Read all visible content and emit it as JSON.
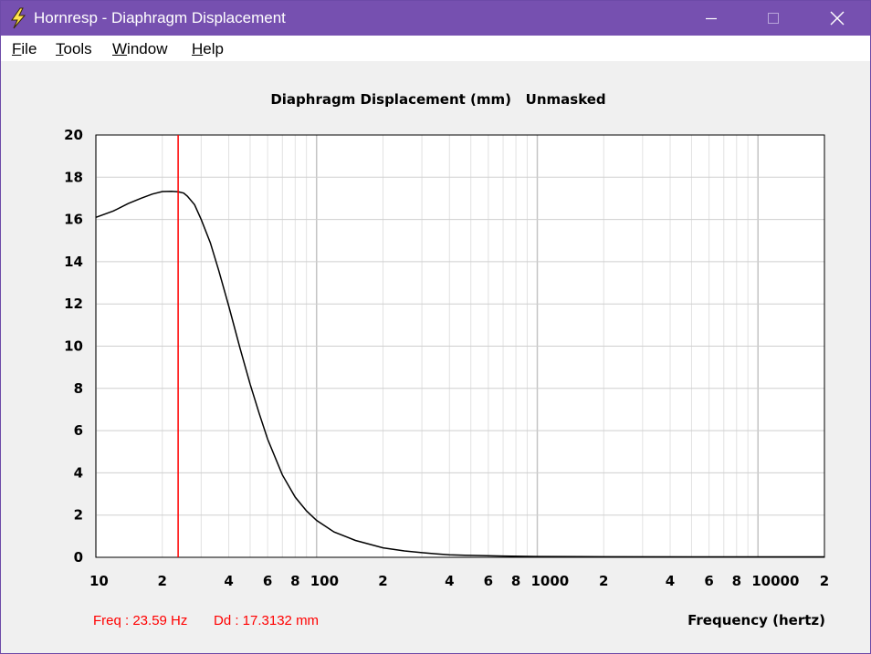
{
  "window": {
    "title": "Hornresp - Diaphragm Displacement",
    "title_color": "#7650b0",
    "icon": "lightning-bolt-icon"
  },
  "menu": {
    "items": [
      {
        "label": "File",
        "accel": "F",
        "rest": "ile"
      },
      {
        "label": "Tools",
        "accel": "T",
        "rest": "ools"
      },
      {
        "label": "Window",
        "accel": "W",
        "rest": "indow"
      },
      {
        "label": "Help",
        "accel": "H",
        "rest": "elp"
      }
    ]
  },
  "chart_data": {
    "type": "line",
    "title": "Diaphragm Displacement (mm)   Unmasked",
    "xlabel": "Frequency (hertz)",
    "ylabel": "",
    "x_scale": "log",
    "xlim": [
      10,
      20000
    ],
    "ylim": [
      0,
      20
    ],
    "grid": true,
    "x_tick_labels": [
      {
        "value": 10,
        "label": "10"
      },
      {
        "value": 20,
        "label": "2"
      },
      {
        "value": 40,
        "label": "4"
      },
      {
        "value": 60,
        "label": "6"
      },
      {
        "value": 80,
        "label": "8"
      },
      {
        "value": 100,
        "label": "100"
      },
      {
        "value": 200,
        "label": "2"
      },
      {
        "value": 400,
        "label": "4"
      },
      {
        "value": 600,
        "label": "6"
      },
      {
        "value": 800,
        "label": "8"
      },
      {
        "value": 1000,
        "label": "1000"
      },
      {
        "value": 2000,
        "label": "2"
      },
      {
        "value": 4000,
        "label": "4"
      },
      {
        "value": 6000,
        "label": "6"
      },
      {
        "value": 8000,
        "label": "8"
      },
      {
        "value": 10000,
        "label": "10000"
      },
      {
        "value": 20000,
        "label": "2"
      }
    ],
    "y_ticks": [
      0,
      2,
      4,
      6,
      8,
      10,
      12,
      14,
      16,
      18,
      20
    ],
    "series": [
      {
        "color": "#000000",
        "x": [
          10,
          12,
          14,
          16,
          18,
          20,
          22,
          23.6,
          25,
          26,
          28,
          30,
          33,
          36,
          40,
          45,
          50,
          55,
          60,
          70,
          80,
          90,
          100,
          120,
          150,
          200,
          250,
          300,
          350,
          400,
          500,
          700,
          1000,
          2000,
          5000,
          10000,
          20000
        ],
        "y": [
          16.1,
          16.4,
          16.75,
          17.0,
          17.2,
          17.32,
          17.33,
          17.31,
          17.25,
          17.1,
          16.7,
          16.0,
          14.9,
          13.6,
          11.9,
          9.9,
          8.2,
          6.8,
          5.6,
          3.9,
          2.85,
          2.2,
          1.75,
          1.2,
          0.8,
          0.45,
          0.3,
          0.22,
          0.16,
          0.12,
          0.09,
          0.06,
          0.04,
          0.025,
          0.02,
          0.02,
          0.02
        ]
      }
    ],
    "marker": {
      "x": 23.59,
      "color": "#ff0000"
    }
  },
  "status": {
    "freq": "Freq : 23.59 Hz",
    "dd": "Dd : 17.3132 mm"
  }
}
